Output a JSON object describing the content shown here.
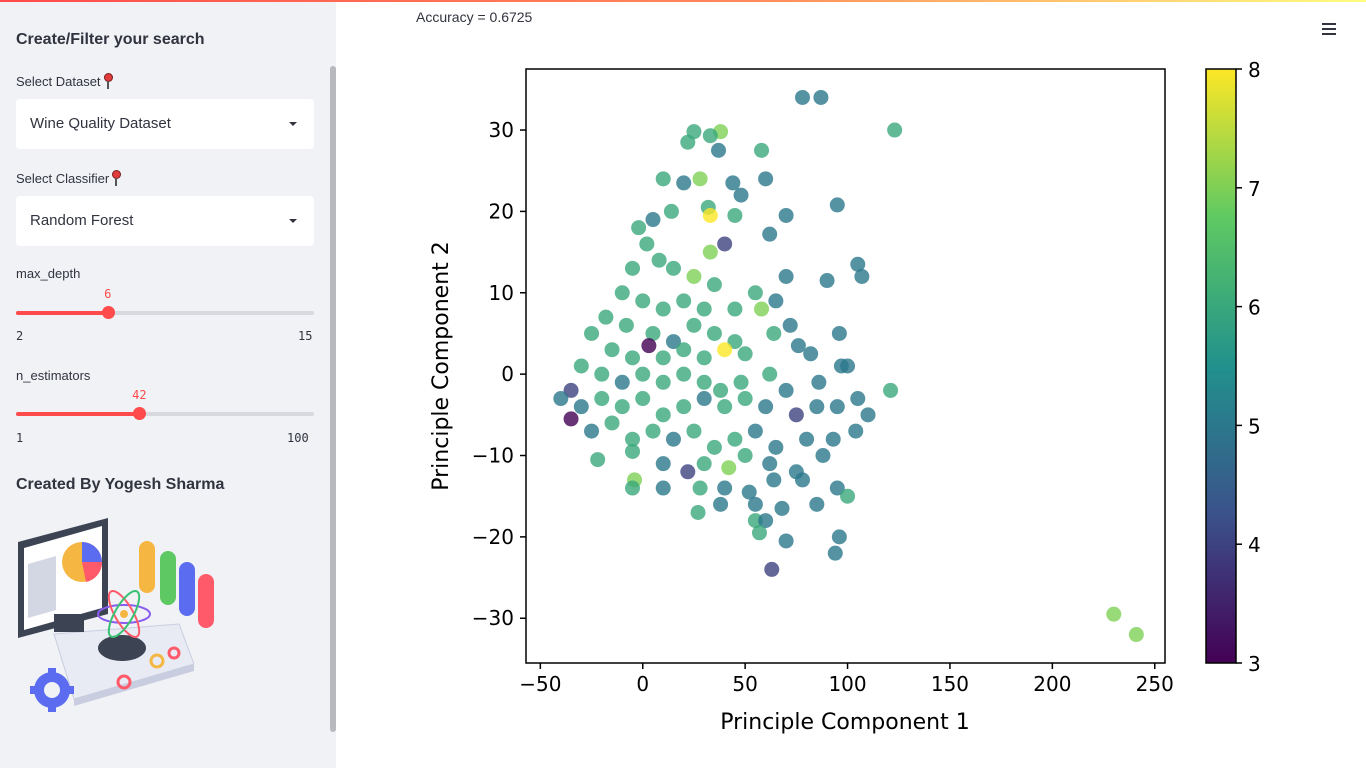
{
  "sidebar": {
    "title": "Create/Filter your search",
    "dataset_label": "Select Dataset",
    "dataset_value": "Wine Quality Dataset",
    "classifier_label": "Select Classifier",
    "classifier_value": "Random Forest",
    "max_depth": {
      "label": "max_depth",
      "value": 6,
      "min": 2,
      "max": 15
    },
    "n_estimators": {
      "label": "n_estimators",
      "value": 42,
      "min": 1,
      "max": 100
    },
    "created_by": "Created By Yogesh Sharma"
  },
  "main": {
    "accuracy": "Accuracy = 0.6725"
  },
  "colors": {
    "accent": "#ff4b4b",
    "sidebar_bg": "#f0f2f6"
  },
  "chart_data": {
    "type": "scatter",
    "xlabel": "Principle Component 1",
    "ylabel": "Principle Component 2",
    "xlim": [
      -57,
      255
    ],
    "ylim": [
      -35.5,
      37.5
    ],
    "xticks": [
      "−50",
      "0",
      "50",
      "100",
      "150",
      "200",
      "250"
    ],
    "xtick_values": [
      -50,
      0,
      50,
      100,
      150,
      200,
      250
    ],
    "yticks": [
      "−30",
      "−20",
      "−10",
      "0",
      "10",
      "20",
      "30"
    ],
    "ytick_values": [
      -30,
      -20,
      -10,
      0,
      10,
      20,
      30
    ],
    "colorbar": {
      "min": 3,
      "max": 8,
      "ticks": [
        "3",
        "4",
        "5",
        "6",
        "7",
        "8"
      ],
      "colormap": "viridis"
    },
    "points": [
      [
        78,
        34,
        5
      ],
      [
        87,
        34,
        5
      ],
      [
        123,
        30,
        6
      ],
      [
        58,
        27.5,
        6
      ],
      [
        38,
        29.8,
        7
      ],
      [
        33,
        29.3,
        6
      ],
      [
        22,
        28.5,
        6
      ],
      [
        37,
        27.5,
        5
      ],
      [
        25,
        29.8,
        6
      ],
      [
        10,
        24,
        6
      ],
      [
        20,
        23.5,
        5
      ],
      [
        28,
        24,
        7
      ],
      [
        44,
        23.5,
        5
      ],
      [
        60,
        24,
        5
      ],
      [
        48,
        22,
        5
      ],
      [
        95,
        20.8,
        5
      ],
      [
        45,
        19.5,
        6
      ],
      [
        32,
        20.5,
        6
      ],
      [
        33,
        19.5,
        8
      ],
      [
        70,
        19.5,
        5
      ],
      [
        14,
        20,
        6
      ],
      [
        62,
        17.2,
        5
      ],
      [
        40,
        16,
        4
      ],
      [
        33,
        15,
        7
      ],
      [
        5,
        19,
        5
      ],
      [
        -2,
        18,
        6
      ],
      [
        2,
        16,
        6
      ],
      [
        8,
        14,
        6
      ],
      [
        -5,
        13,
        6
      ],
      [
        15,
        13,
        6
      ],
      [
        25,
        12,
        7
      ],
      [
        35,
        11,
        6
      ],
      [
        55,
        10,
        6
      ],
      [
        70,
        12,
        5
      ],
      [
        105,
        13.5,
        5
      ],
      [
        107,
        12,
        5
      ],
      [
        -10,
        10,
        6
      ],
      [
        0,
        9,
        6
      ],
      [
        10,
        8,
        6
      ],
      [
        20,
        9,
        6
      ],
      [
        30,
        8,
        6
      ],
      [
        45,
        8,
        6
      ],
      [
        65,
        9,
        5
      ],
      [
        90,
        11.5,
        5
      ],
      [
        -18,
        7,
        6
      ],
      [
        -8,
        6,
        6
      ],
      [
        5,
        5,
        6
      ],
      [
        15,
        4,
        5
      ],
      [
        25,
        6,
        6
      ],
      [
        35,
        5,
        6
      ],
      [
        45,
        4,
        6
      ],
      [
        58,
        8,
        7
      ],
      [
        64,
        5,
        6
      ],
      [
        72,
        6,
        5
      ],
      [
        96,
        5,
        5
      ],
      [
        -25,
        5,
        6
      ],
      [
        -15,
        3,
        6
      ],
      [
        -5,
        2,
        6
      ],
      [
        3,
        3.5,
        3
      ],
      [
        10,
        2,
        6
      ],
      [
        20,
        3,
        6
      ],
      [
        30,
        2,
        6
      ],
      [
        40,
        3,
        8
      ],
      [
        50,
        2.5,
        6
      ],
      [
        76,
        3.5,
        5
      ],
      [
        82,
        2.5,
        5
      ],
      [
        -30,
        1,
        6
      ],
      [
        -20,
        0,
        6
      ],
      [
        -10,
        -1,
        5
      ],
      [
        0,
        0,
        6
      ],
      [
        10,
        -1,
        6
      ],
      [
        20,
        0,
        6
      ],
      [
        30,
        -1,
        6
      ],
      [
        38,
        -2,
        6
      ],
      [
        48,
        -1,
        6
      ],
      [
        62,
        0,
        6
      ],
      [
        70,
        -2,
        5
      ],
      [
        86,
        -1,
        5
      ],
      [
        97,
        1,
        5
      ],
      [
        100,
        1,
        5
      ],
      [
        121,
        -2,
        6
      ],
      [
        -35,
        -2,
        4
      ],
      [
        -40,
        -3,
        5
      ],
      [
        -30,
        -4,
        5
      ],
      [
        -20,
        -3,
        6
      ],
      [
        -10,
        -4,
        6
      ],
      [
        0,
        -3,
        6
      ],
      [
        10,
        -5,
        6
      ],
      [
        20,
        -4,
        6
      ],
      [
        30,
        -3,
        5
      ],
      [
        40,
        -4,
        6
      ],
      [
        50,
        -3,
        6
      ],
      [
        60,
        -4,
        5
      ],
      [
        75,
        -5,
        4
      ],
      [
        85,
        -4,
        5
      ],
      [
        95,
        -4,
        5
      ],
      [
        105,
        -3,
        5
      ],
      [
        110,
        -5,
        5
      ],
      [
        -35,
        -5.5,
        3
      ],
      [
        -25,
        -7,
        5
      ],
      [
        -15,
        -6,
        6
      ],
      [
        -5,
        -8,
        6
      ],
      [
        5,
        -7,
        6
      ],
      [
        15,
        -8,
        5
      ],
      [
        25,
        -7,
        6
      ],
      [
        35,
        -9,
        6
      ],
      [
        45,
        -8,
        6
      ],
      [
        55,
        -7,
        5
      ],
      [
        65,
        -9,
        5
      ],
      [
        80,
        -8,
        5
      ],
      [
        93,
        -8,
        5
      ],
      [
        104,
        -7,
        5
      ],
      [
        -22,
        -10.5,
        6
      ],
      [
        -5,
        -9.5,
        6
      ],
      [
        10,
        -11,
        5
      ],
      [
        22,
        -12,
        4
      ],
      [
        30,
        -11,
        6
      ],
      [
        42,
        -11.5,
        7
      ],
      [
        50,
        -10,
        6
      ],
      [
        62,
        -11,
        5
      ],
      [
        75,
        -12,
        5
      ],
      [
        88,
        -10,
        5
      ],
      [
        -4,
        -13,
        7
      ],
      [
        -5,
        -14,
        6
      ],
      [
        10,
        -14,
        5
      ],
      [
        28,
        -14,
        6
      ],
      [
        40,
        -14,
        5
      ],
      [
        52,
        -14.5,
        5
      ],
      [
        64,
        -13,
        5
      ],
      [
        78,
        -13,
        5
      ],
      [
        95,
        -14,
        5
      ],
      [
        100,
        -15,
        6
      ],
      [
        27,
        -17,
        6
      ],
      [
        38,
        -16,
        5
      ],
      [
        55,
        -16,
        5
      ],
      [
        68,
        -16.5,
        5
      ],
      [
        85,
        -16,
        5
      ],
      [
        55,
        -18,
        6
      ],
      [
        60,
        -18,
        5
      ],
      [
        57,
        -19.5,
        6
      ],
      [
        70,
        -20.5,
        5
      ],
      [
        96,
        -20,
        5
      ],
      [
        94,
        -22,
        5
      ],
      [
        63,
        -24,
        4
      ],
      [
        230,
        -29.5,
        7
      ],
      [
        241,
        -32,
        7
      ]
    ]
  }
}
